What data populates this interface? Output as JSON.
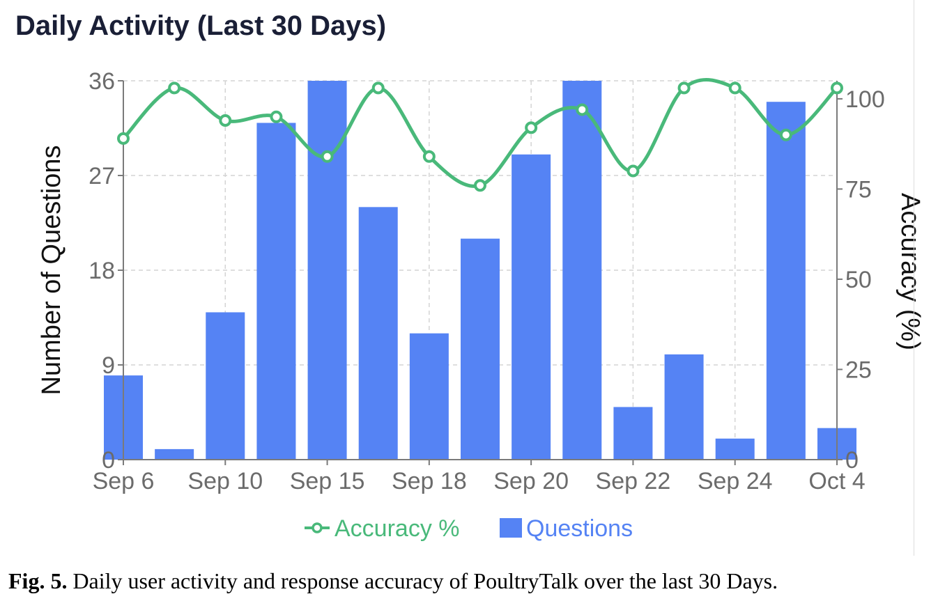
{
  "figure": {
    "caption_label": "Fig. 5.",
    "caption_text": " Daily user activity and response accuracy of PoultryTalk over the last 30 Days."
  },
  "chart_data": {
    "type": "bar",
    "title": "Daily Activity (Last 30 Days)",
    "ylabel": "Number of Questions",
    "y2label": "Accuracy (%)",
    "ylim": [
      0,
      36
    ],
    "y2lim": [
      0,
      105
    ],
    "yticks": [
      0,
      9,
      18,
      27,
      36
    ],
    "y2ticks": [
      0,
      25,
      50,
      75,
      100
    ],
    "xticks": [
      {
        "label": "Sep 6",
        "index": 0
      },
      {
        "label": "Sep 10",
        "index": 2
      },
      {
        "label": "Sep 15",
        "index": 4
      },
      {
        "label": "Sep 18",
        "index": 6
      },
      {
        "label": "Sep 20",
        "index": 8
      },
      {
        "label": "Sep 22",
        "index": 10
      },
      {
        "label": "Sep 24",
        "index": 12
      },
      {
        "label": "Oct 4",
        "index": 14
      }
    ],
    "grid": true,
    "series": [
      {
        "name": "Questions",
        "type": "bar",
        "axis": "left",
        "color": "#5583f4",
        "values": [
          8,
          1,
          14,
          32,
          36,
          24,
          12,
          21,
          29,
          36,
          5,
          10,
          2,
          34,
          3
        ]
      },
      {
        "name": "Accuracy %",
        "type": "line",
        "axis": "right",
        "color": "#49b97a",
        "values": [
          89,
          103,
          94,
          95,
          84,
          103,
          84,
          76,
          92,
          97,
          80,
          103,
          103,
          90,
          103
        ]
      }
    ],
    "legend": {
      "position": "bottom-center",
      "order": [
        "Accuracy %",
        "Questions"
      ]
    }
  }
}
